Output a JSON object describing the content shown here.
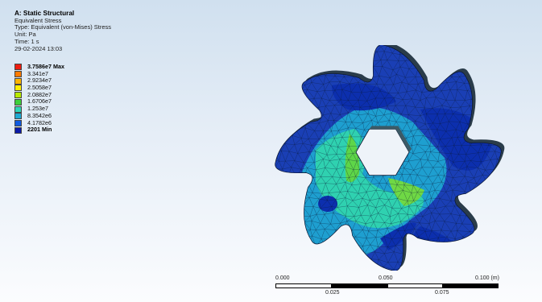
{
  "header": {
    "title": "A: Static Structural",
    "result": "Equivalent Stress",
    "type": "Type: Equivalent (von-Mises) Stress",
    "unit": "Unit: Pa",
    "time": "Time: 1 s",
    "date": "29-02-2024 13:03"
  },
  "legend": [
    {
      "label": "3.7586e7 Max",
      "color": "#ee1c10",
      "bold": true
    },
    {
      "label": "3.341e7",
      "color": "#ff7a00",
      "bold": false
    },
    {
      "label": "2.9234e7",
      "color": "#ffb400",
      "bold": false
    },
    {
      "label": "2.5058e7",
      "color": "#ffee00",
      "bold": false
    },
    {
      "label": "2.0882e7",
      "color": "#b8ea00",
      "bold": false
    },
    {
      "label": "1.6706e7",
      "color": "#3ed03b",
      "bold": false
    },
    {
      "label": "1.253e7",
      "color": "#2ed6b8",
      "bold": false
    },
    {
      "label": "8.3542e6",
      "color": "#1ea9d3",
      "bold": false
    },
    {
      "label": "4.1782e6",
      "color": "#0f5be0",
      "bold": false
    },
    {
      "label": "2201 Min",
      "color": "#0a1aa8",
      "bold": true
    }
  ],
  "scale": {
    "label_0": "0.000",
    "label_050": "0.050",
    "label_100": "0.100 (m)",
    "label_025": "0.025",
    "label_075": "0.075"
  }
}
